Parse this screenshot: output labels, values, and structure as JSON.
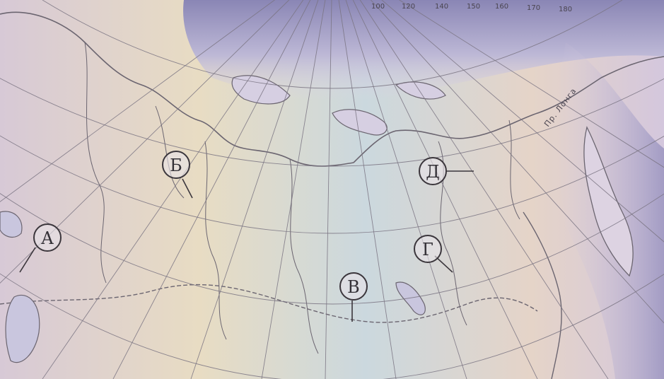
{
  "map": {
    "markers": [
      {
        "id": "A",
        "label": "А"
      },
      {
        "id": "B",
        "label": "Б"
      },
      {
        "id": "V",
        "label": "В"
      },
      {
        "id": "G",
        "label": "Г"
      },
      {
        "id": "D",
        "label": "Д"
      }
    ],
    "strait_label": "Пр. Лонга",
    "meridian_labels": [
      "100",
      "120",
      "140",
      "150",
      "160",
      "170",
      "180"
    ],
    "colors": {
      "background": "#e9e6e4",
      "sea": "#c9c6de",
      "land": "#e6e0e6",
      "ocean_edge": "#8d8ab8",
      "lines": "#6b6570",
      "marker_stroke": "#3b363c"
    }
  }
}
